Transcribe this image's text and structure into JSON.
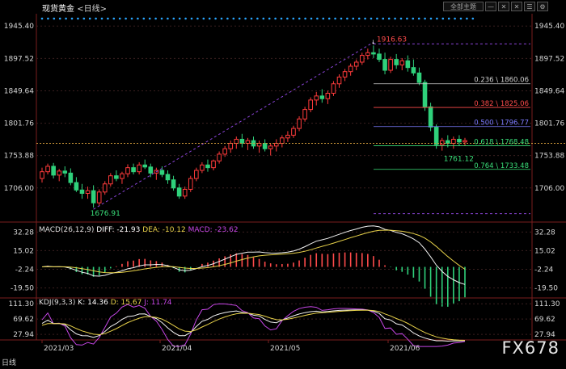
{
  "header": {
    "instrument": "现货黄金",
    "period": "<日线>",
    "btn_main": "全部主题",
    "btn_minus": "—",
    "btn_x": "✕",
    "btn_close": "✕",
    "btn_menu": "☰",
    "btn_settings": "⚙"
  },
  "price_axis": {
    "labels": [
      "1945.40",
      "1897.52",
      "1849.64",
      "1801.76",
      "1753.88",
      "1706.00"
    ],
    "values": [
      1945.4,
      1897.52,
      1849.64,
      1801.76,
      1753.88,
      1706.0
    ]
  },
  "macd_axis": {
    "labels": [
      "32.28",
      "15.02",
      "-2.24",
      "-19.50"
    ],
    "values": [
      32.28,
      15.02,
      -2.24,
      -19.5
    ]
  },
  "kdj_axis": {
    "labels": [
      "111.30",
      "69.62",
      "27.94"
    ],
    "values": [
      111.3,
      69.62,
      27.94
    ]
  },
  "date_axis": [
    "2021/03",
    "2021/04",
    "2021/05",
    "2021/06"
  ],
  "annotations": {
    "high": "1916.63",
    "low": "1676.91",
    "recent_low": "1761.12"
  },
  "fib_levels": [
    {
      "label": "0.236 \\ 1860.06",
      "value": 1860.06,
      "color": "#cfcfcf"
    },
    {
      "label": "0.382 \\ 1825.06",
      "value": 1825.06,
      "color": "#ff4b4b"
    },
    {
      "label": "0.500 \\ 1796.77",
      "value": 1796.77,
      "color": "#7b7bff"
    },
    {
      "label": "0.618 \\ 1768.48",
      "value": 1768.48,
      "color": "#3ae07a"
    },
    {
      "label": "0.764 \\ 1733.48",
      "value": 1733.48,
      "color": "#3ae07a"
    }
  ],
  "macd": {
    "label": "MACD(26,12,9)",
    "diff": "DIFF: -21.93",
    "dea": "DEA: -10.12",
    "macd": "MACD: -23.62"
  },
  "kdj": {
    "label": "KDJ(9,3,3)",
    "k": "K: 14.36",
    "d": "D: 15.67",
    "j": "J: 11.74"
  },
  "colors": {
    "up": "#ff3b3b",
    "down": "#2fd17b",
    "grid": "#3a1f1f",
    "axis_text": "#d6d6d6",
    "dash_purple": "#8a44d8",
    "dash_orange": "#d29a3a",
    "dots_blue": "#2aa6ff"
  },
  "bottom_label": "日线",
  "watermark": "FX678",
  "chart_data": {
    "type": "candlestick",
    "x_labels": [
      "2021/03",
      "2021/04",
      "2021/05",
      "2021/06"
    ],
    "ohlc": [
      [
        1720,
        1736,
        1714,
        1730
      ],
      [
        1730,
        1742,
        1726,
        1738
      ],
      [
        1738,
        1743,
        1720,
        1725
      ],
      [
        1725,
        1734,
        1716,
        1731
      ],
      [
        1731,
        1738,
        1722,
        1728
      ],
      [
        1728,
        1735,
        1710,
        1714
      ],
      [
        1714,
        1722,
        1700,
        1703
      ],
      [
        1703,
        1712,
        1690,
        1698
      ],
      [
        1698,
        1708,
        1690,
        1702
      ],
      [
        1702,
        1710,
        1676.91,
        1684
      ],
      [
        1684,
        1704,
        1680,
        1700
      ],
      [
        1700,
        1716,
        1696,
        1712
      ],
      [
        1712,
        1728,
        1708,
        1724
      ],
      [
        1724,
        1732,
        1716,
        1720
      ],
      [
        1720,
        1730,
        1712,
        1727
      ],
      [
        1727,
        1741,
        1722,
        1736
      ],
      [
        1736,
        1742,
        1726,
        1730
      ],
      [
        1730,
        1744,
        1726,
        1740
      ],
      [
        1740,
        1748,
        1734,
        1737
      ],
      [
        1737,
        1742,
        1722,
        1728
      ],
      [
        1728,
        1736,
        1718,
        1732
      ],
      [
        1732,
        1738,
        1722,
        1726
      ],
      [
        1726,
        1732,
        1712,
        1718
      ],
      [
        1718,
        1724,
        1702,
        1706
      ],
      [
        1706,
        1712,
        1690,
        1694
      ],
      [
        1694,
        1708,
        1690,
        1704
      ],
      [
        1704,
        1724,
        1700,
        1720
      ],
      [
        1720,
        1736,
        1716,
        1732
      ],
      [
        1732,
        1744,
        1728,
        1740
      ],
      [
        1740,
        1748,
        1730,
        1736
      ],
      [
        1736,
        1748,
        1732,
        1746
      ],
      [
        1746,
        1760,
        1742,
        1756
      ],
      [
        1756,
        1768,
        1752,
        1764
      ],
      [
        1764,
        1776,
        1758,
        1772
      ],
      [
        1772,
        1782,
        1764,
        1778
      ],
      [
        1778,
        1786,
        1766,
        1772
      ],
      [
        1772,
        1780,
        1762,
        1776
      ],
      [
        1776,
        1782,
        1764,
        1768
      ],
      [
        1768,
        1776,
        1758,
        1772
      ],
      [
        1772,
        1778,
        1760,
        1764
      ],
      [
        1764,
        1772,
        1754,
        1768
      ],
      [
        1768,
        1778,
        1760,
        1772
      ],
      [
        1772,
        1784,
        1766,
        1780
      ],
      [
        1780,
        1790,
        1774,
        1784
      ],
      [
        1784,
        1798,
        1780,
        1794
      ],
      [
        1794,
        1812,
        1790,
        1808
      ],
      [
        1808,
        1826,
        1804,
        1822
      ],
      [
        1822,
        1840,
        1818,
        1836
      ],
      [
        1836,
        1848,
        1828,
        1842
      ],
      [
        1842,
        1852,
        1832,
        1838
      ],
      [
        1838,
        1850,
        1830,
        1846
      ],
      [
        1846,
        1864,
        1842,
        1860
      ],
      [
        1860,
        1874,
        1854,
        1870
      ],
      [
        1870,
        1882,
        1864,
        1878
      ],
      [
        1878,
        1890,
        1872,
        1886
      ],
      [
        1886,
        1896,
        1880,
        1892
      ],
      [
        1892,
        1906,
        1888,
        1902
      ],
      [
        1902,
        1912,
        1896,
        1906
      ],
      [
        1906,
        1916.63,
        1898,
        1904
      ],
      [
        1904,
        1912,
        1892,
        1896
      ],
      [
        1896,
        1906,
        1874,
        1880
      ],
      [
        1880,
        1900,
        1876,
        1896
      ],
      [
        1896,
        1904,
        1882,
        1888
      ],
      [
        1888,
        1898,
        1880,
        1894
      ],
      [
        1894,
        1902,
        1878,
        1884
      ],
      [
        1884,
        1896,
        1872,
        1876
      ],
      [
        1876,
        1884,
        1858,
        1862
      ],
      [
        1862,
        1866,
        1820,
        1826
      ],
      [
        1826,
        1832,
        1790,
        1796
      ],
      [
        1796,
        1800,
        1764,
        1770
      ],
      [
        1770,
        1780,
        1761.12,
        1776
      ],
      [
        1776,
        1784,
        1766,
        1772
      ],
      [
        1772,
        1782,
        1764,
        1778
      ],
      [
        1778,
        1784,
        1768,
        1774
      ],
      [
        1774,
        1780,
        1768,
        1776
      ]
    ]
  }
}
